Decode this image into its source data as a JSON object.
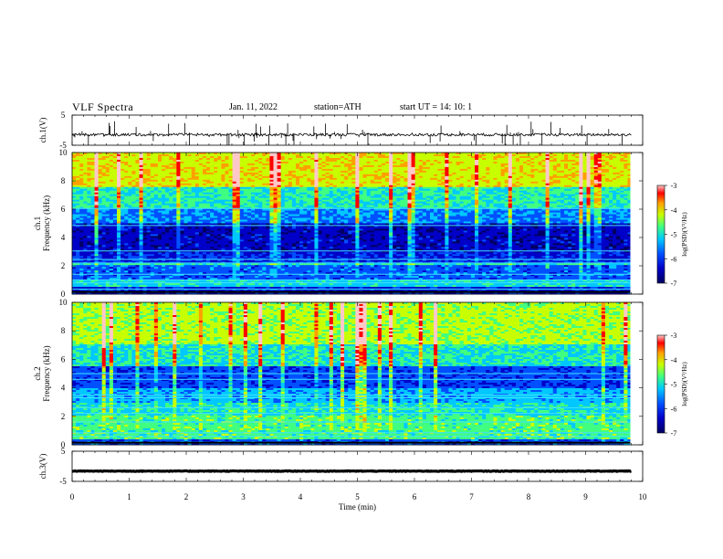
{
  "header": {
    "title": "VLF  Spectra",
    "date": "Jan. 11, 2022",
    "station": "station=ATH",
    "start": "start  UT  =   14: 10: 1"
  },
  "chart_data": [
    {
      "type": "line",
      "name": "ch1-waveform",
      "ylabel": "ch.1(V)",
      "ylim": [
        -5,
        5
      ],
      "yticks": [
        "5",
        "-5"
      ],
      "x_range_min": [
        0,
        9.8
      ],
      "baseline_v": -1.5,
      "series_color": "#000000"
    },
    {
      "type": "heatmap",
      "name": "ch1-spectrogram",
      "ylabel": "ch.1 Frequency (kHz)",
      "ylim": [
        0,
        10
      ],
      "yticks": [
        "0",
        "2",
        "4",
        "6",
        "8",
        "10"
      ],
      "colorbar": {
        "label": "log(PSD)(V²/Hz)",
        "range": [
          -7,
          -3
        ],
        "ticks": [
          "-3",
          "-4",
          "-5",
          "-6",
          "-7"
        ]
      }
    },
    {
      "type": "heatmap",
      "name": "ch2-spectrogram",
      "ylabel": "ch.2 Frequency (kHz)",
      "ylim": [
        0,
        10
      ],
      "yticks": [
        "0",
        "2",
        "4",
        "6",
        "8",
        "10"
      ],
      "colorbar": {
        "label": "log(PSD)(V²/Hz)",
        "range": [
          -7,
          -3
        ],
        "ticks": [
          "-3",
          "-4",
          "-5",
          "-6",
          "-7"
        ]
      }
    },
    {
      "type": "line",
      "name": "ch3-waveform",
      "ylabel": "ch.3(V)",
      "ylim": [
        -5,
        5
      ],
      "yticks": [
        "5",
        "-5"
      ],
      "baseline_v": -1.6,
      "series_color": "#000000"
    }
  ],
  "xaxis": {
    "label": "Time  (min)",
    "range": [
      0,
      10
    ],
    "ticks": [
      "0",
      "1",
      "2",
      "3",
      "4",
      "5",
      "6",
      "7",
      "8",
      "9",
      "10"
    ]
  },
  "colormap": [
    "#000060",
    "#0000c8",
    "#0050ff",
    "#00c8ff",
    "#40ff80",
    "#c8ff00",
    "#ffa000",
    "#ff0000",
    "#ffc8c8"
  ]
}
